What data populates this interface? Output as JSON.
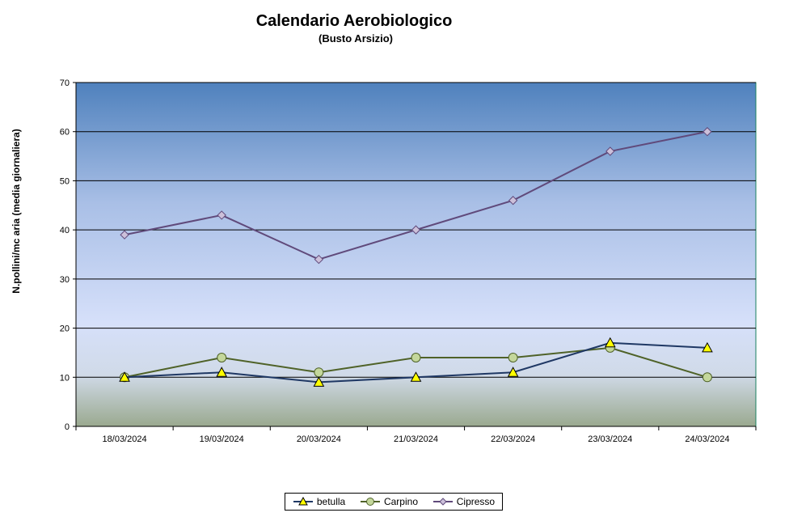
{
  "chart_data": {
    "type": "line",
    "title": "Calendario Aerobiologico",
    "subtitle": "(Busto Arsizio)",
    "xlabel": "",
    "ylabel": "N.pollini/mc aria (media giornaliera)",
    "ylim": [
      0,
      70
    ],
    "yticks": [
      0,
      10,
      20,
      30,
      40,
      50,
      60,
      70
    ],
    "grid": true,
    "legend_position": "bottom",
    "categories": [
      "18/03/2024",
      "19/03/2024",
      "20/03/2024",
      "21/03/2024",
      "22/03/2024",
      "23/03/2024",
      "24/03/2024"
    ],
    "series": [
      {
        "name": "betulla",
        "values": [
          10,
          11,
          9,
          10,
          11,
          17,
          16
        ],
        "line_color": "#1f3864",
        "marker": "triangle",
        "marker_fill": "#ffff00"
      },
      {
        "name": "Carpino",
        "values": [
          10,
          14,
          11,
          14,
          14,
          16,
          10
        ],
        "line_color": "#4f6228",
        "marker": "circle",
        "marker_fill": "#c4d79b"
      },
      {
        "name": "Cipresso",
        "values": [
          39,
          43,
          34,
          40,
          46,
          56,
          60
        ],
        "line_color": "#604a7b",
        "marker": "diamond",
        "marker_fill": "#ccc0da"
      }
    ]
  }
}
